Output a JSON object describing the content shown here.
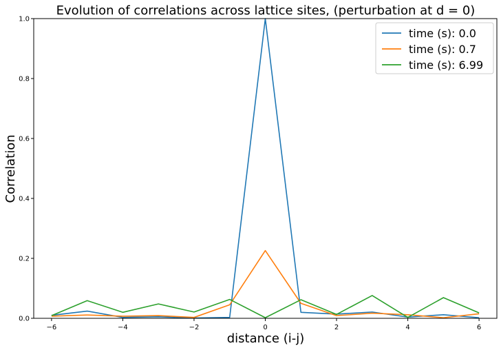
{
  "chart_data": {
    "type": "line",
    "title": "Evolution of correlations across lattice sites, (perturbation at d = 0)",
    "xlabel": "distance (i-j)",
    "ylabel": "Correlation",
    "xlim": [
      -6.5,
      6.5
    ],
    "ylim": [
      0,
      1.0
    ],
    "x": [
      -6,
      -5,
      -4,
      -3,
      -2,
      -1,
      0,
      1,
      2,
      3,
      4,
      5,
      6
    ],
    "xticks": [
      -6,
      -4,
      -2,
      0,
      2,
      4,
      6
    ],
    "xtick_labels": [
      "−6",
      "−4",
      "−2",
      "0",
      "2",
      "4",
      "6"
    ],
    "yticks": [
      0,
      0.2,
      0.4,
      0.6,
      0.8,
      1.0
    ],
    "ytick_labels": [
      "0.0",
      "0.2",
      "0.4",
      "0.6",
      "0.8",
      "1.0"
    ],
    "grid": false,
    "legend_position": "top-right",
    "series": [
      {
        "name": "time (s): 0.0",
        "color": "#1f77b4",
        "values": [
          0.01,
          0.024,
          0.003,
          0.005,
          0.001,
          0.003,
          1.0,
          0.02,
          0.014,
          0.021,
          0.004,
          0.012,
          0.002
        ]
      },
      {
        "name": "time (s): 0.7",
        "color": "#ff7f0e",
        "values": [
          0.007,
          0.011,
          0.007,
          0.009,
          0.003,
          0.045,
          0.226,
          0.05,
          0.009,
          0.017,
          0.012,
          0.002,
          0.015
        ]
      },
      {
        "name": "time (s): 6.99",
        "color": "#2ca02c",
        "values": [
          0.009,
          0.059,
          0.02,
          0.048,
          0.021,
          0.063,
          0.002,
          0.062,
          0.013,
          0.076,
          0.003,
          0.069,
          0.018
        ]
      }
    ]
  }
}
